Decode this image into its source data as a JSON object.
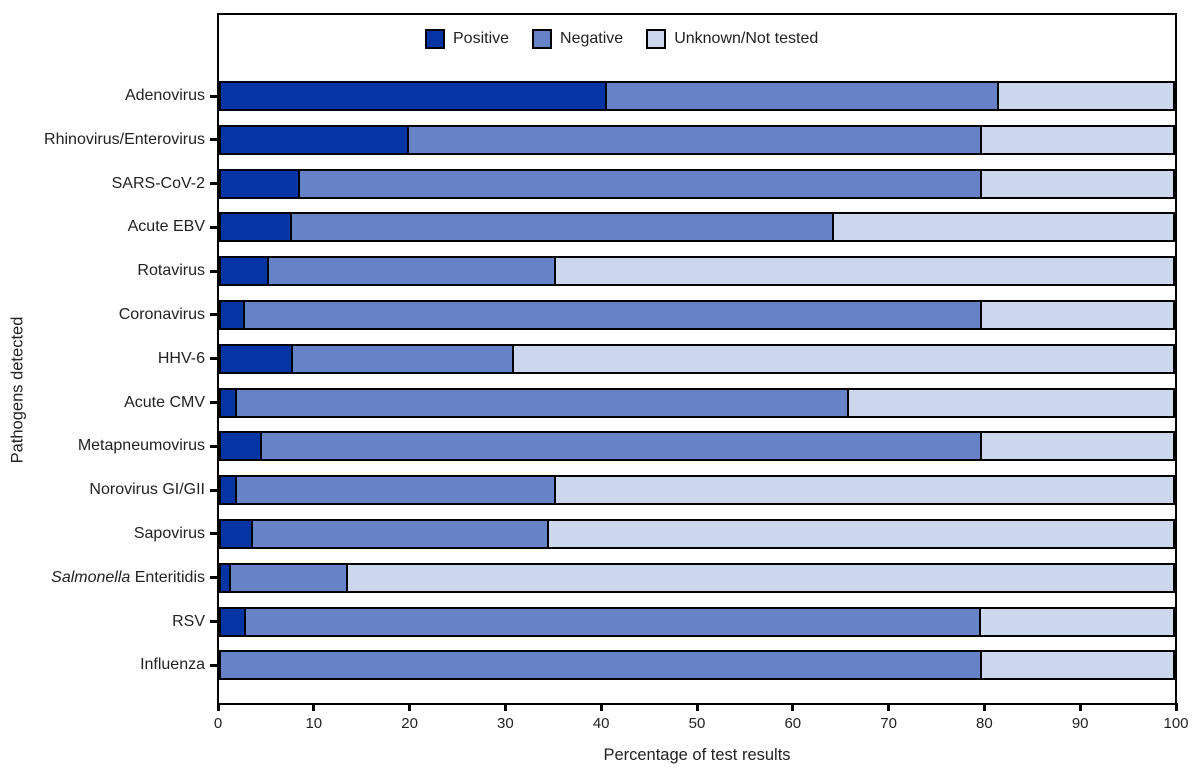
{
  "chart_data": {
    "type": "bar",
    "orientation": "horizontal",
    "stacked": true,
    "xlabel": "Percentage of test results",
    "ylabel": "Pathogens detected",
    "xlim": [
      0,
      100
    ],
    "x_ticks": [
      0,
      10,
      20,
      30,
      40,
      50,
      60,
      70,
      80,
      90,
      100
    ],
    "grid": false,
    "legend_position": "top-inside",
    "legend": [
      {
        "label": "Positive",
        "color": "#0534A4"
      },
      {
        "label": "Negative",
        "color": "#6583C6"
      },
      {
        "label": "Unknown/Not tested",
        "color": "#CCD7EE"
      }
    ],
    "outline_color": "#000000",
    "categories": [
      {
        "italic_prefix": "",
        "name": "Adenovirus",
        "positive": 40.3,
        "negative": 41.2,
        "unknown": 18.5
      },
      {
        "italic_prefix": "",
        "name": "Rhinovirus/Enterovirus",
        "positive": 19.5,
        "negative": 60.2,
        "unknown": 20.3
      },
      {
        "italic_prefix": "",
        "name": "SARS-CoV-2",
        "positive": 8.1,
        "negative": 71.6,
        "unknown": 20.3
      },
      {
        "italic_prefix": "",
        "name": "Acute EBV",
        "positive": 7.3,
        "negative": 56.9,
        "unknown": 35.8
      },
      {
        "italic_prefix": "",
        "name": "Rotavirus",
        "positive": 4.8,
        "negative": 30.2,
        "unknown": 65.0
      },
      {
        "italic_prefix": "",
        "name": "Coronavirus",
        "positive": 2.3,
        "negative": 77.4,
        "unknown": 20.3
      },
      {
        "italic_prefix": "",
        "name": "HHV-6",
        "positive": 7.4,
        "negative": 23.2,
        "unknown": 69.4
      },
      {
        "italic_prefix": "",
        "name": "Acute CMV",
        "positive": 1.5,
        "negative": 64.3,
        "unknown": 34.2
      },
      {
        "italic_prefix": "",
        "name": "Metapneumovirus",
        "positive": 4.1,
        "negative": 75.6,
        "unknown": 20.3
      },
      {
        "italic_prefix": "",
        "name": "Norovirus GI/GII",
        "positive": 1.5,
        "negative": 33.5,
        "unknown": 65.0
      },
      {
        "italic_prefix": "",
        "name": "Sapovirus",
        "positive": 3.2,
        "negative": 31.0,
        "unknown": 65.8
      },
      {
        "italic_prefix": "Salmonella",
        "name": " Enteritidis",
        "positive": 0.8,
        "negative": 12.3,
        "unknown": 86.9
      },
      {
        "italic_prefix": "",
        "name": "RSV",
        "positive": 2.4,
        "negative": 77.2,
        "unknown": 20.4
      },
      {
        "italic_prefix": "",
        "name": "Influenza",
        "positive": 0,
        "negative": 79.7,
        "unknown": 20.3
      }
    ]
  }
}
